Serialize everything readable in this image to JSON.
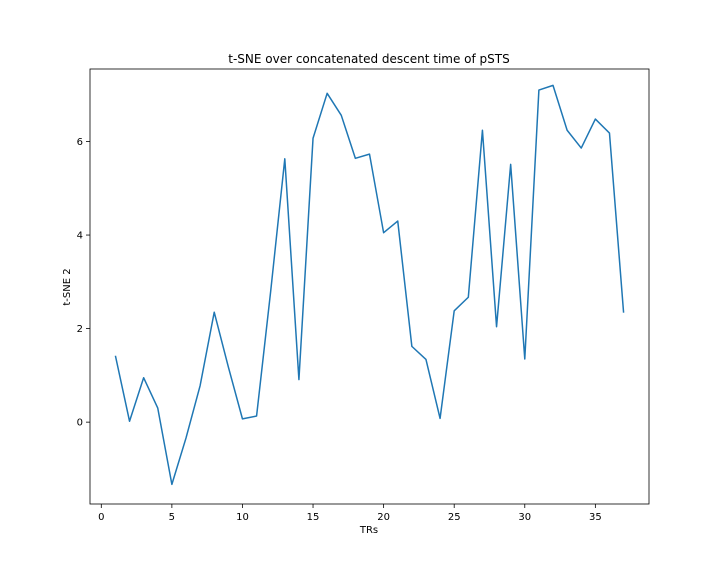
{
  "chart_data": {
    "type": "line",
    "title": "t-SNE over concatenated descent time of pSTS",
    "xlabel": "TRs",
    "ylabel": "t-SNE 2",
    "xlim": [
      -0.8,
      38.8
    ],
    "ylim": [
      -1.75,
      7.55
    ],
    "xticks": [
      0,
      5,
      10,
      15,
      20,
      25,
      30,
      35
    ],
    "yticks": [
      0,
      2,
      4,
      6
    ],
    "grid": false,
    "series_color": "#1f77b4",
    "series": [
      {
        "x": [
          1,
          2,
          3,
          4,
          5,
          6,
          7,
          8,
          9,
          10,
          11,
          12,
          13,
          14,
          15,
          16,
          17,
          18,
          19,
          20,
          21,
          22,
          23,
          24,
          25,
          26,
          27,
          28,
          29,
          30,
          31,
          32,
          33,
          34,
          35,
          36,
          37
        ],
        "values": [
          1.42,
          0.02,
          0.95,
          0.3,
          -1.33,
          -0.34,
          0.78,
          2.35,
          1.18,
          0.07,
          0.13,
          2.8,
          5.63,
          0.91,
          6.07,
          7.03,
          6.56,
          5.64,
          5.73,
          4.05,
          4.3,
          1.62,
          1.34,
          0.08,
          2.38,
          2.67,
          6.24,
          2.04,
          5.51,
          1.35,
          7.1,
          7.2,
          6.24,
          5.86,
          6.48,
          6.18,
          2.34
        ]
      }
    ]
  }
}
